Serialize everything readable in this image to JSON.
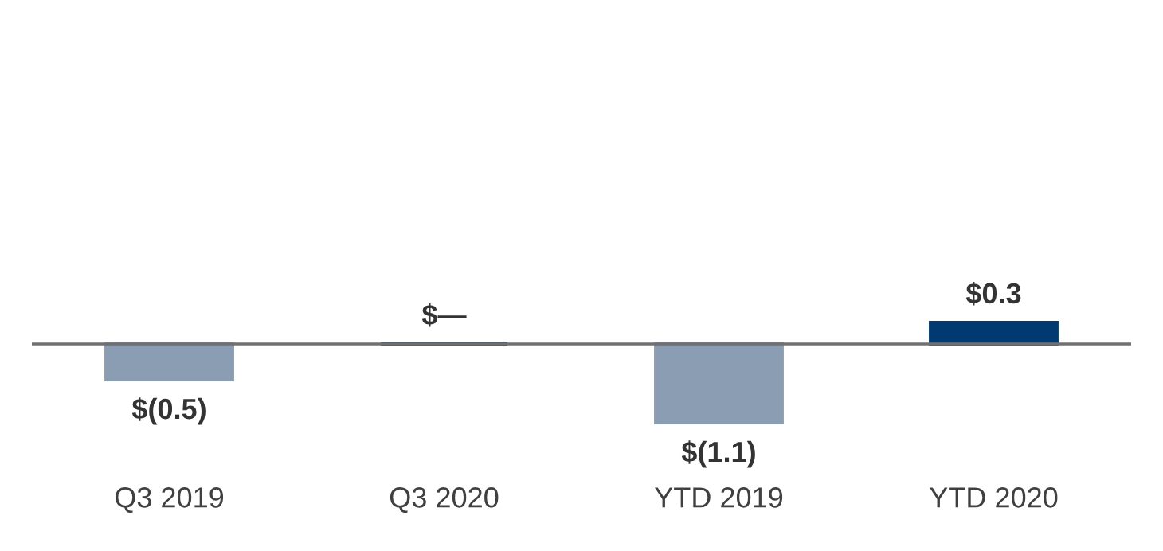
{
  "chart_data": {
    "type": "bar",
    "categories": [
      "Q3 2019",
      "Q3 2020",
      "YTD 2019",
      "YTD 2020"
    ],
    "values": [
      -0.5,
      0,
      -1.1,
      0.3
    ],
    "colors": [
      "#8a9db2",
      "#003a70",
      "#8a9db2",
      "#003a70"
    ],
    "value_labels": [
      "$(0.5)",
      "$—",
      "$(1.1)",
      "$0.3"
    ],
    "grid": false,
    "legend": false
  }
}
